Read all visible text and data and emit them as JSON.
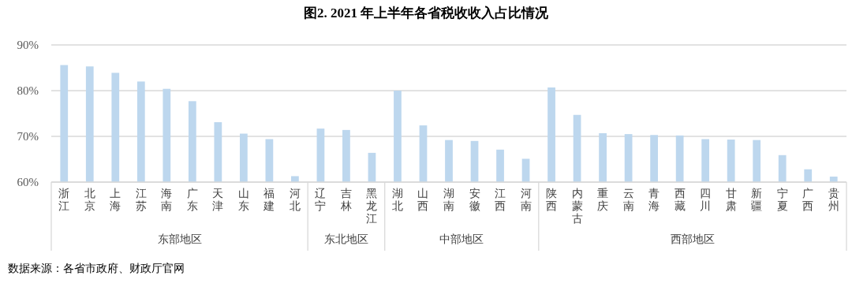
{
  "chart_data": {
    "type": "bar",
    "title": "图2. 2021 年上半年各省税收收入占比情况",
    "categories": [
      "浙江",
      "北京",
      "上海",
      "江苏",
      "海南",
      "广东",
      "天津",
      "山东",
      "福建",
      "河北",
      "辽宁",
      "吉林",
      "黑龙江",
      "湖北",
      "山西",
      "湖南",
      "安徽",
      "江西",
      "河南",
      "陕西",
      "内蒙古",
      "重庆",
      "云南",
      "青海",
      "西藏",
      "四川",
      "甘肃",
      "新疆",
      "宁夏",
      "广西",
      "贵州"
    ],
    "values": [
      85.6,
      85.3,
      83.9,
      82.0,
      80.4,
      77.7,
      73.1,
      70.6,
      69.4,
      61.3,
      71.7,
      71.4,
      66.4,
      80.0,
      72.4,
      69.2,
      69.0,
      67.1,
      65.1,
      80.7,
      74.7,
      70.7,
      70.5,
      70.3,
      70.2,
      69.4,
      69.3,
      69.2,
      65.9,
      62.8,
      61.2
    ],
    "color": "#bdd7ee",
    "ylim": [
      60,
      90
    ],
    "yticks": [
      {
        "value": 60,
        "label": "60%"
      },
      {
        "value": 70,
        "label": "70%"
      },
      {
        "value": 80,
        "label": "80%"
      },
      {
        "value": 90,
        "label": "90%"
      }
    ],
    "grid": "y",
    "annotations": [
      "东部地区",
      "东北地区",
      "中部地区",
      "西部地区",
      "数据来源：各省市政府、财政厅官网"
    ]
  }
}
